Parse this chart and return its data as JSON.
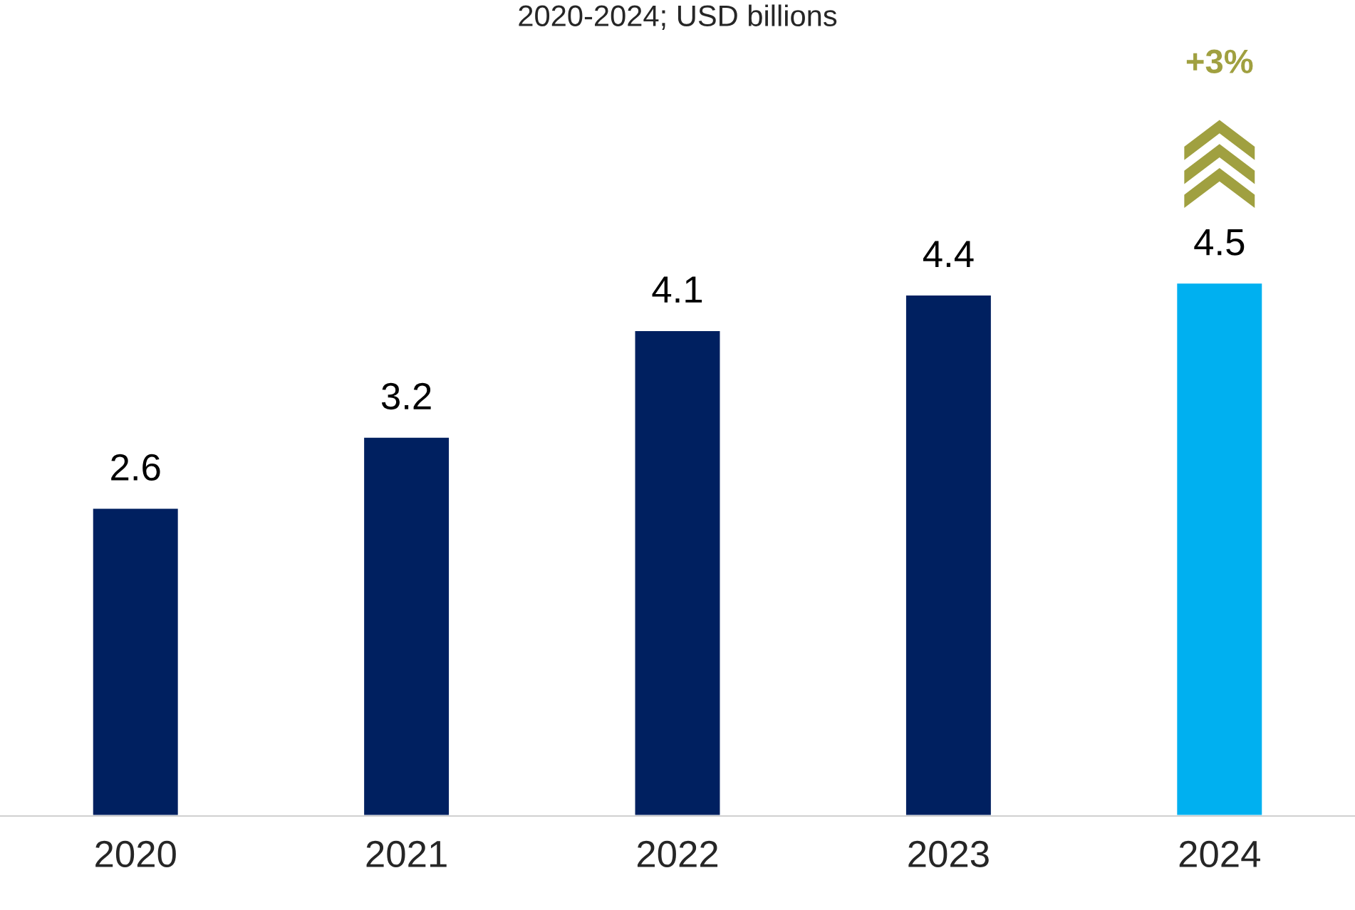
{
  "chart_data": {
    "type": "bar",
    "subtitle": "2020-2024; USD billions",
    "categories": [
      "2020",
      "2021",
      "2022",
      "2023",
      "2024"
    ],
    "values": [
      2.6,
      3.2,
      4.1,
      4.4,
      4.5
    ],
    "colors": [
      "#002060",
      "#002060",
      "#002060",
      "#002060",
      "#00b0f0"
    ],
    "data_labels": true,
    "annotations": [
      "+3%"
    ]
  }
}
